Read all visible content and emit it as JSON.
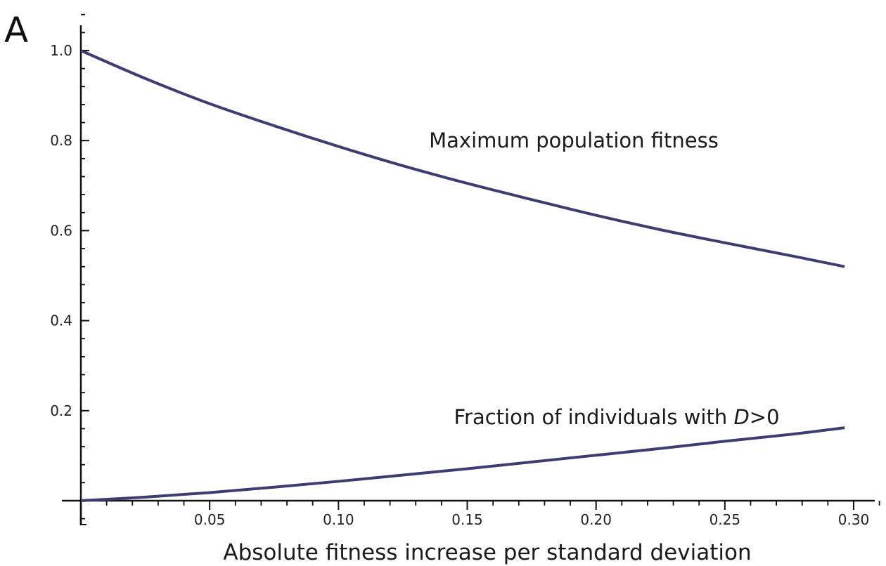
{
  "panel_label": "A",
  "chart_data": {
    "type": "line",
    "title": "",
    "xlabel": "Absolute fitness increase per standard deviation",
    "ylabel": "",
    "xlim": [
      0,
      0.3
    ],
    "ylim": [
      0,
      1.0
    ],
    "x_ticks": [
      0.05,
      0.1,
      0.15,
      0.2,
      0.25,
      0.3
    ],
    "x_tick_labels": [
      "0.05",
      "0.10",
      "0.15",
      "0.20",
      "0.25",
      "0.30"
    ],
    "y_ticks": [
      0.2,
      0.4,
      0.6,
      0.8,
      1.0
    ],
    "y_tick_labels": [
      "0.2",
      "0.4",
      "0.6",
      "0.8",
      "1.0"
    ],
    "grid": false,
    "line_color": "#3d3d72",
    "series": [
      {
        "name": "Maximum population fitness",
        "label_prefix": "Maximum population fitness",
        "label_italic": "",
        "label_suffix": "",
        "x": [
          0,
          0.025,
          0.05,
          0.075,
          0.1,
          0.125,
          0.15,
          0.175,
          0.2,
          0.225,
          0.25,
          0.275,
          0.3
        ],
        "y": [
          1.0,
          0.938,
          0.882,
          0.833,
          0.787,
          0.744,
          0.705,
          0.669,
          0.634,
          0.602,
          0.573,
          0.545,
          0.52
        ]
      },
      {
        "name": "Fraction of individuals with D>0",
        "label_prefix": "Fraction of individuals with ",
        "label_italic": "D",
        "label_suffix": ">0",
        "x": [
          0,
          0.025,
          0.05,
          0.075,
          0.1,
          0.125,
          0.15,
          0.175,
          0.2,
          0.225,
          0.25,
          0.275,
          0.3
        ],
        "y": [
          0.0,
          0.008,
          0.018,
          0.03,
          0.043,
          0.057,
          0.071,
          0.086,
          0.101,
          0.116,
          0.132,
          0.147,
          0.162
        ]
      }
    ]
  }
}
